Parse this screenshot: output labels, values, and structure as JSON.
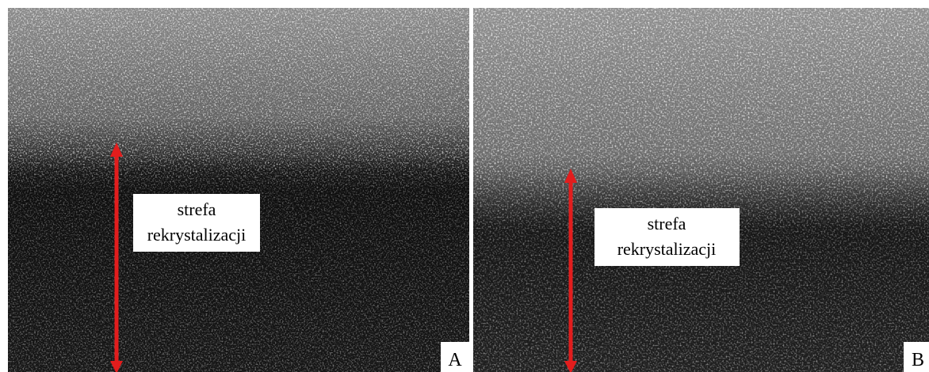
{
  "panels": [
    {
      "label": "A",
      "annotation": {
        "line1": "strefa",
        "line2": "rekrystalizacji"
      }
    },
    {
      "label": "B",
      "annotation": {
        "line1": "strefa",
        "line2": "rekrystalizacji"
      }
    }
  ]
}
